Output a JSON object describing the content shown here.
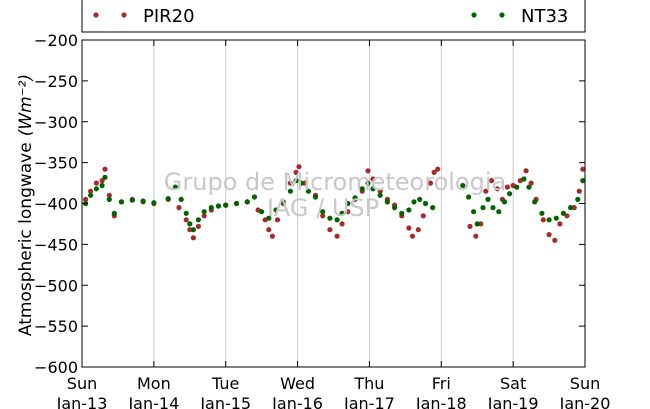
{
  "chart_data": {
    "type": "scatter",
    "ylabel": "Atmospheric longwave",
    "ylabel_unit": "(Wm⁻²)",
    "ylim": [
      -600,
      -200
    ],
    "yticks": [
      -200,
      -250,
      -300,
      -350,
      -400,
      -450,
      -500,
      -550,
      -600
    ],
    "xlim": [
      "2013-01-13",
      "2013-01-20"
    ],
    "xticks": [
      {
        "day": 0,
        "line1": "Sun",
        "line2": "Jan-13"
      },
      {
        "day": 1,
        "line1": "Mon",
        "line2": "Jan-14"
      },
      {
        "day": 2,
        "line1": "Tue",
        "line2": "Jan-15"
      },
      {
        "day": 3,
        "line1": "Wed",
        "line2": "Jan-16"
      },
      {
        "day": 4,
        "line1": "Thu",
        "line2": "Jan-17"
      },
      {
        "day": 5,
        "line1": "Fri",
        "line2": "Jan-18"
      },
      {
        "day": 6,
        "line1": "Sat",
        "line2": "Jan-19"
      },
      {
        "day": 7,
        "line1": "Sun",
        "line2": "Jan-20"
      }
    ],
    "grid": "vertical",
    "legend_position": "top",
    "series": [
      {
        "name": "PIR20",
        "color": "#a52a2a",
        "points": [
          [
            0.05,
            -395
          ],
          [
            0.12,
            -385
          ],
          [
            0.2,
            -375
          ],
          [
            0.28,
            -372
          ],
          [
            0.32,
            -358
          ],
          [
            0.38,
            -390
          ],
          [
            0.45,
            -415
          ],
          [
            0.55,
            -398
          ],
          [
            0.7,
            -395
          ],
          [
            0.85,
            -398
          ],
          [
            1.0,
            -400
          ],
          [
            1.2,
            -395
          ],
          [
            1.35,
            -405
          ],
          [
            1.45,
            -420
          ],
          [
            1.5,
            -432
          ],
          [
            1.55,
            -442
          ],
          [
            1.62,
            -428
          ],
          [
            1.7,
            -415
          ],
          [
            1.8,
            -408
          ],
          [
            1.9,
            -403
          ],
          [
            2.0,
            -402
          ],
          [
            2.15,
            -400
          ],
          [
            2.3,
            -398
          ],
          [
            2.45,
            -408
          ],
          [
            2.55,
            -420
          ],
          [
            2.6,
            -432
          ],
          [
            2.65,
            -440
          ],
          [
            2.72,
            -420
          ],
          [
            2.8,
            -400
          ],
          [
            2.9,
            -375
          ],
          [
            2.98,
            -362
          ],
          [
            3.02,
            -355
          ],
          [
            3.1,
            -375
          ],
          [
            3.25,
            -390
          ],
          [
            3.35,
            -415
          ],
          [
            3.45,
            -432
          ],
          [
            3.55,
            -440
          ],
          [
            3.62,
            -425
          ],
          [
            3.7,
            -410
          ],
          [
            3.8,
            -395
          ],
          [
            3.9,
            -385
          ],
          [
            3.98,
            -360
          ],
          [
            4.05,
            -370
          ],
          [
            4.15,
            -385
          ],
          [
            4.25,
            -395
          ],
          [
            4.35,
            -402
          ],
          [
            4.45,
            -415
          ],
          [
            4.55,
            -430
          ],
          [
            4.6,
            -440
          ],
          [
            4.68,
            -432
          ],
          [
            4.75,
            -415
          ],
          [
            4.85,
            -375
          ],
          [
            4.9,
            -362
          ],
          [
            4.95,
            -358
          ],
          [
            5.4,
            -428
          ],
          [
            5.48,
            -440
          ],
          [
            5.55,
            -425
          ],
          [
            5.62,
            -385
          ],
          [
            5.7,
            -372
          ],
          [
            5.78,
            -382
          ],
          [
            5.85,
            -395
          ],
          [
            5.92,
            -380
          ],
          [
            6.0,
            -378
          ],
          [
            6.1,
            -372
          ],
          [
            6.18,
            -360
          ],
          [
            6.25,
            -375
          ],
          [
            6.32,
            -395
          ],
          [
            6.42,
            -420
          ],
          [
            6.5,
            -438
          ],
          [
            6.58,
            -445
          ],
          [
            6.65,
            -425
          ],
          [
            6.75,
            -415
          ],
          [
            6.85,
            -405
          ],
          [
            6.92,
            -385
          ],
          [
            6.97,
            -358
          ]
        ]
      },
      {
        "name": "NT33",
        "color": "#006400",
        "points": [
          [
            0.05,
            -400
          ],
          [
            0.12,
            -390
          ],
          [
            0.2,
            -382
          ],
          [
            0.28,
            -378
          ],
          [
            0.32,
            -368
          ],
          [
            0.38,
            -395
          ],
          [
            0.45,
            -412
          ],
          [
            0.55,
            -398
          ],
          [
            0.7,
            -396
          ],
          [
            0.85,
            -397
          ],
          [
            1.0,
            -399
          ],
          [
            1.2,
            -394
          ],
          [
            1.3,
            -380
          ],
          [
            1.38,
            -395
          ],
          [
            1.45,
            -412
          ],
          [
            1.5,
            -425
          ],
          [
            1.55,
            -432
          ],
          [
            1.62,
            -420
          ],
          [
            1.7,
            -410
          ],
          [
            1.8,
            -405
          ],
          [
            1.9,
            -403
          ],
          [
            2.0,
            -402
          ],
          [
            2.15,
            -400
          ],
          [
            2.3,
            -398
          ],
          [
            2.4,
            -392
          ],
          [
            2.5,
            -410
          ],
          [
            2.6,
            -418
          ],
          [
            2.7,
            -408
          ],
          [
            2.8,
            -398
          ],
          [
            2.9,
            -385
          ],
          [
            2.98,
            -372
          ],
          [
            3.05,
            -375
          ],
          [
            3.15,
            -385
          ],
          [
            3.25,
            -392
          ],
          [
            3.35,
            -410
          ],
          [
            3.45,
            -418
          ],
          [
            3.55,
            -420
          ],
          [
            3.62,
            -412
          ],
          [
            3.7,
            -400
          ],
          [
            3.8,
            -393
          ],
          [
            3.9,
            -382
          ],
          [
            3.98,
            -375
          ],
          [
            4.05,
            -382
          ],
          [
            4.15,
            -390
          ],
          [
            4.25,
            -398
          ],
          [
            4.35,
            -405
          ],
          [
            4.45,
            -412
          ],
          [
            4.55,
            -408
          ],
          [
            4.62,
            -398
          ],
          [
            4.7,
            -395
          ],
          [
            4.78,
            -400
          ],
          [
            4.88,
            -405
          ],
          [
            5.3,
            -378
          ],
          [
            5.38,
            -392
          ],
          [
            5.45,
            -410
          ],
          [
            5.5,
            -425
          ],
          [
            5.58,
            -405
          ],
          [
            5.65,
            -395
          ],
          [
            5.72,
            -405
          ],
          [
            5.8,
            -410
          ],
          [
            5.88,
            -398
          ],
          [
            5.95,
            -388
          ],
          [
            6.05,
            -380
          ],
          [
            6.15,
            -370
          ],
          [
            6.22,
            -380
          ],
          [
            6.3,
            -398
          ],
          [
            6.4,
            -412
          ],
          [
            6.5,
            -420
          ],
          [
            6.6,
            -418
          ],
          [
            6.7,
            -412
          ],
          [
            6.8,
            -405
          ],
          [
            6.9,
            -395
          ],
          [
            6.97,
            -372
          ]
        ]
      }
    ],
    "watermark": {
      "line1": "Grupo de Micrometeorologia",
      "line2": "IAG / USP"
    }
  }
}
